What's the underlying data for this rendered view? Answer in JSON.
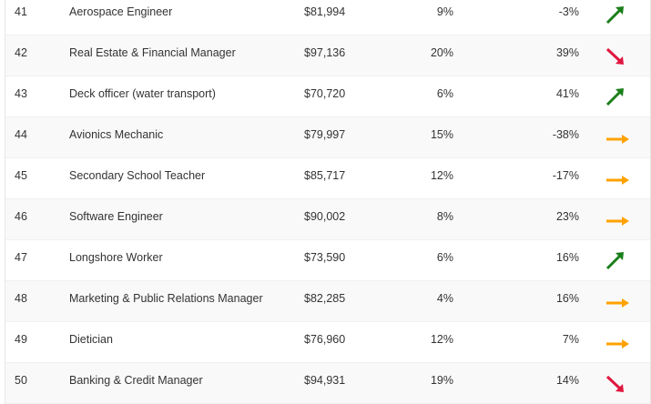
{
  "rows": [
    {
      "rank": "41",
      "title": "Aerospace Engineer",
      "salary": "$81,994",
      "growth": "9%",
      "change": "-3%",
      "trend": "up"
    },
    {
      "rank": "42",
      "title": "Real Estate & Financial Manager",
      "salary": "$97,136",
      "growth": "20%",
      "change": "39%",
      "trend": "down"
    },
    {
      "rank": "43",
      "title": "Deck officer (water transport)",
      "salary": "$70,720",
      "growth": "6%",
      "change": "41%",
      "trend": "up"
    },
    {
      "rank": "44",
      "title": "Avionics Mechanic",
      "salary": "$79,997",
      "growth": "15%",
      "change": "-38%",
      "trend": "flat"
    },
    {
      "rank": "45",
      "title": "Secondary School Teacher",
      "salary": "$85,717",
      "growth": "12%",
      "change": "-17%",
      "trend": "flat"
    },
    {
      "rank": "46",
      "title": "Software Engineer",
      "salary": "$90,002",
      "growth": "8%",
      "change": "23%",
      "trend": "flat"
    },
    {
      "rank": "47",
      "title": "Longshore Worker",
      "salary": "$73,590",
      "growth": "6%",
      "change": "16%",
      "trend": "up"
    },
    {
      "rank": "48",
      "title": "Marketing & Public Relations Manager",
      "salary": "$82,285",
      "growth": "4%",
      "change": "16%",
      "trend": "flat"
    },
    {
      "rank": "49",
      "title": "Dietician",
      "salary": "$76,960",
      "growth": "12%",
      "change": "7%",
      "trend": "flat"
    },
    {
      "rank": "50",
      "title": "Banking & Credit Manager",
      "salary": "$94,931",
      "growth": "19%",
      "change": "14%",
      "trend": "down"
    }
  ],
  "colors": {
    "up": "#1a7f1a",
    "down": "#e0163f",
    "flat": "#ffa200"
  }
}
